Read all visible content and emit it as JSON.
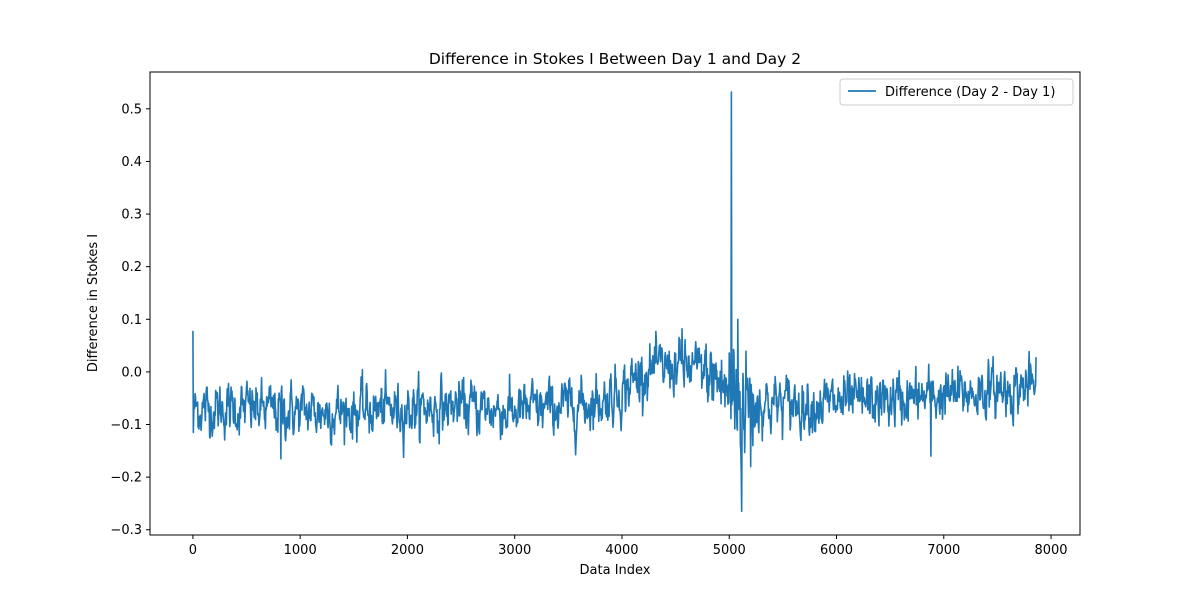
{
  "chart_data": {
    "type": "line",
    "title": "Difference in Stokes I Between Day 1 and Day 2",
    "xlabel": "Data Index",
    "ylabel": "Difference in Stokes I",
    "xlim": [
      -400,
      8270
    ],
    "ylim": [
      -0.31,
      0.57
    ],
    "xticks": [
      0,
      1000,
      2000,
      3000,
      4000,
      5000,
      6000,
      7000,
      8000
    ],
    "yticks": [
      -0.3,
      -0.2,
      -0.1,
      0.0,
      0.1,
      0.2,
      0.3,
      0.4,
      0.5
    ],
    "xtick_labels": [
      "0",
      "1000",
      "2000",
      "3000",
      "4000",
      "5000",
      "6000",
      "7000",
      "8000"
    ],
    "ytick_labels": [
      "−0.3",
      "−0.2",
      "−0.1",
      "0.0",
      "0.1",
      "0.2",
      "0.3",
      "0.4",
      "0.5"
    ],
    "grid": false,
    "legend_position": "upper right",
    "series": [
      {
        "name": "Difference (Day 2 - Day 1)",
        "color": "#1f77b4",
        "x_start": 0,
        "x_end": 7860,
        "trend_x": [
          0,
          500,
          1000,
          1500,
          2000,
          2500,
          3000,
          3500,
          3800,
          4000,
          4200,
          4500,
          4700,
          4900,
          5000,
          5100,
          5200,
          5400,
          5700,
          6000,
          6500,
          7000,
          7500,
          7860
        ],
        "trend_y": [
          -0.07,
          -0.07,
          -0.075,
          -0.075,
          -0.07,
          -0.065,
          -0.075,
          -0.065,
          -0.055,
          -0.035,
          0.0,
          0.01,
          0.005,
          -0.02,
          -0.04,
          -0.05,
          -0.055,
          -0.06,
          -0.06,
          -0.06,
          -0.055,
          -0.045,
          -0.035,
          -0.025
        ],
        "noise_amp_x": [
          0,
          4000,
          4700,
          4900,
          5050,
          5150,
          5300,
          7860
        ],
        "noise_amp_y": [
          0.024,
          0.025,
          0.024,
          0.04,
          0.07,
          0.06,
          0.026,
          0.024
        ],
        "spikes": [
          {
            "x": 0,
            "y": 0.078
          },
          {
            "x": 5,
            "y": -0.115
          },
          {
            "x": 2250,
            "y": 0.043
          },
          {
            "x": 3450,
            "y": 0.057
          },
          {
            "x": 5020,
            "y": 0.532
          },
          {
            "x": 5030,
            "y": -0.05
          },
          {
            "x": 5110,
            "y": 0.165
          },
          {
            "x": 5115,
            "y": -0.265
          },
          {
            "x": 5130,
            "y": -0.25
          },
          {
            "x": 5080,
            "y": 0.1
          },
          {
            "x": 5200,
            "y": -0.18
          },
          {
            "x": 4330,
            "y": 0.08
          },
          {
            "x": 4560,
            "y": 0.082
          },
          {
            "x": 6570,
            "y": 0.058
          },
          {
            "x": 6880,
            "y": -0.16
          },
          {
            "x": 2930,
            "y": -0.17
          },
          {
            "x": 820,
            "y": -0.165
          },
          {
            "x": 7850,
            "y": 0.045
          }
        ]
      }
    ]
  }
}
